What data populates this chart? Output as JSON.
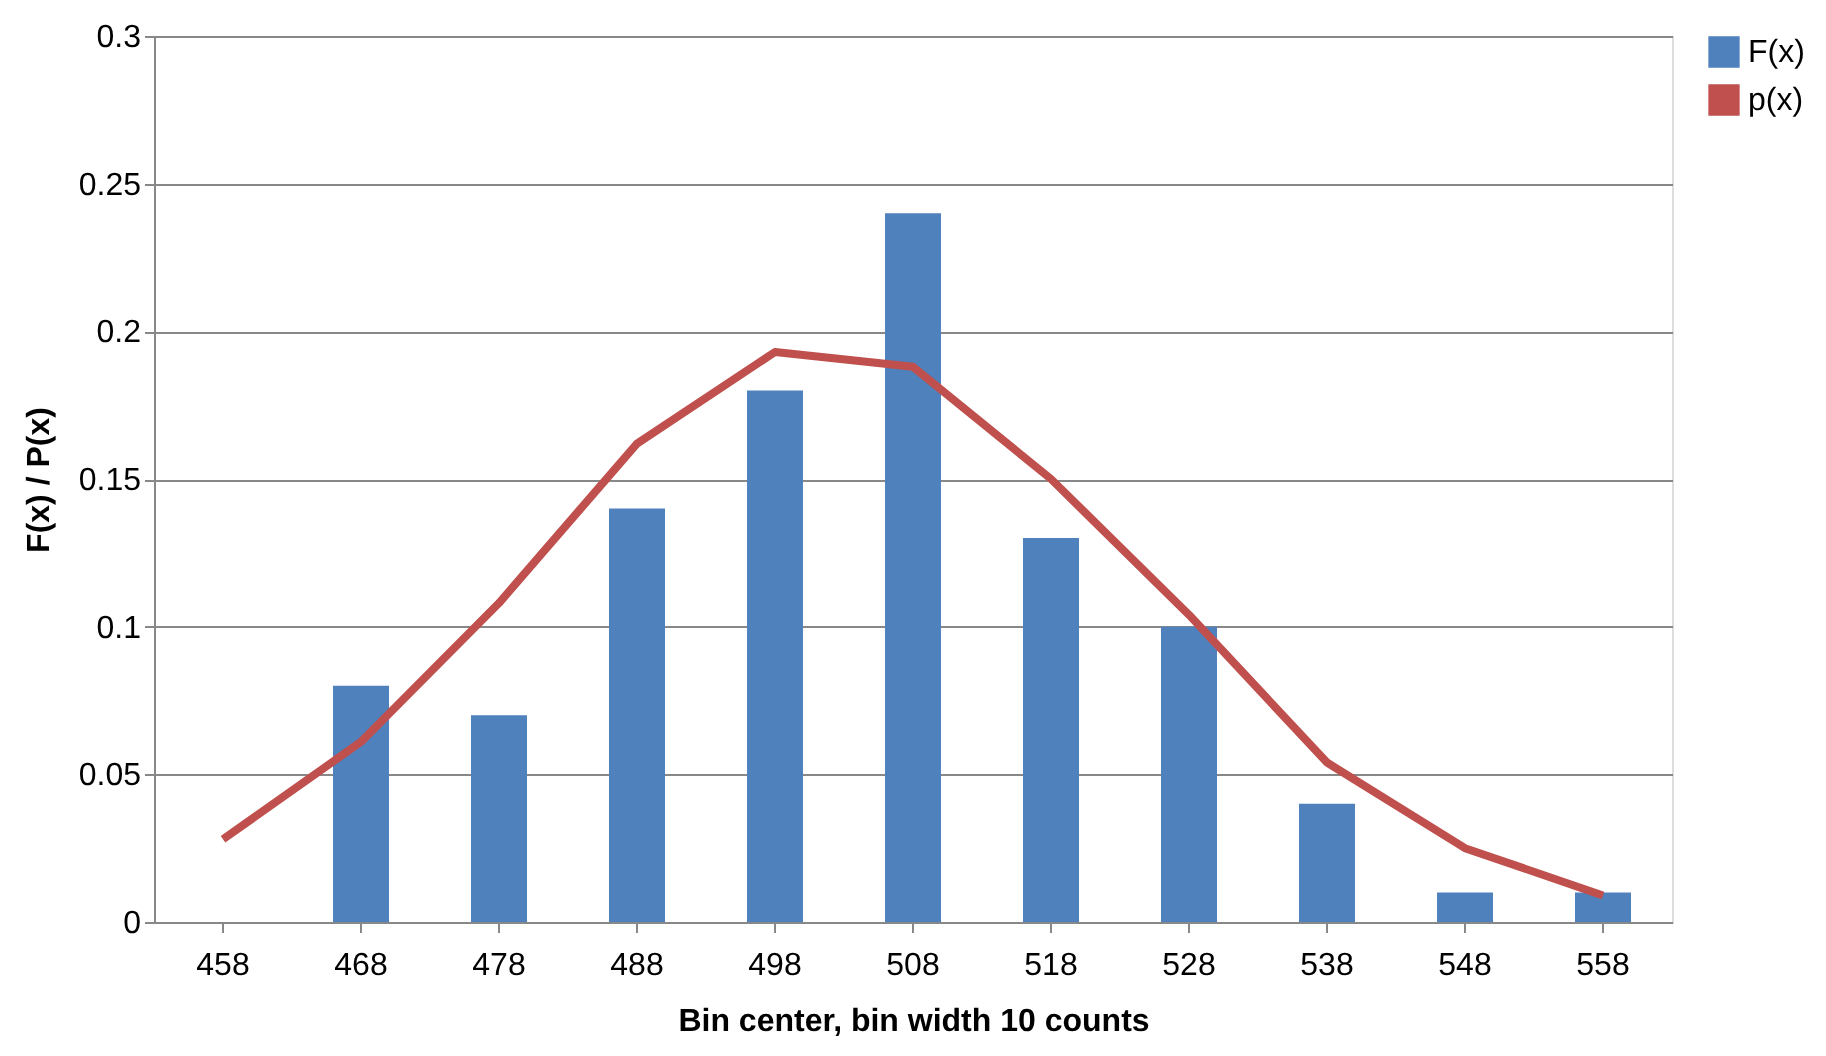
{
  "chart_data": {
    "type": "bar",
    "xlabel": "Bin center, bin width 10  counts",
    "ylabel": "F(x) / P(x)",
    "categories": [
      "458",
      "468",
      "478",
      "488",
      "498",
      "508",
      "518",
      "528",
      "538",
      "548",
      "558"
    ],
    "series": [
      {
        "name": "F(x)",
        "color": "#4f81bd",
        "values": [
          0,
          0.08,
          0.07,
          0.14,
          0.18,
          0.24,
          0.13,
          0.1,
          0.04,
          0.01,
          0.01
        ]
      },
      {
        "name": "p(x)",
        "type": "line",
        "color": "#c0504d",
        "values": [
          0.028,
          0.061,
          0.108,
          0.162,
          0.193,
          0.188,
          0.15,
          0.104,
          0.054,
          0.025,
          0.009
        ]
      }
    ],
    "ylim": [
      0,
      0.3
    ],
    "yticks": [
      0,
      0.05,
      0.1,
      0.15,
      0.2,
      0.25,
      0.3
    ],
    "grid": "y",
    "legend": "right"
  }
}
